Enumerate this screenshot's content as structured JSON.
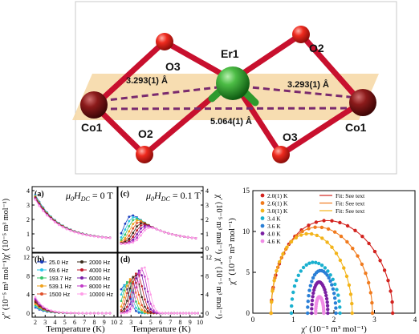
{
  "structure": {
    "atoms": {
      "er": "Er1",
      "o2_top": "O2",
      "o3_left": "O3",
      "o2_bottom": "O2",
      "o3_right": "O3",
      "co_left": "Co1",
      "co_right": "Co1"
    },
    "distances": {
      "left": "3.293(1) Å",
      "right": "3.293(1) Å",
      "bottom": "5.064(1) Å"
    },
    "colors": {
      "er": "#2e9a2e",
      "oxygen": "#e2231a",
      "cobalt": "#8b1a1a",
      "plane": "#f6d9a8",
      "dashed": "#7a2a6e"
    }
  },
  "left_panels": {
    "xlabel": "Temperature (K)",
    "ylabel_chi1": "χ′ (10⁻⁵ m³ mol⁻¹)",
    "ylabel_chi2": "χ″ (10⁻⁵ m³ mol⁻¹)",
    "field_label_a_prefix": "μ",
    "field_label_a_sub": "0",
    "field_label_a_h": "H",
    "field_label_a_hsub": "DC",
    "field_label_a_suffix": " = 0 T",
    "field_label_c_suffix": " = 0.1 T",
    "panel_labels": [
      "(a)",
      "(b)",
      "(c)",
      "(d)"
    ],
    "legend_left": [
      "25.0 Hz",
      "69.6 Hz",
      "193.7 Hz",
      "539.1 Hz",
      "1500 Hz"
    ],
    "legend_right": [
      "2000 Hz",
      "4000 Hz",
      "6000 Hz",
      "8000 Hz",
      "10000 Hz"
    ],
    "x_ticks": [
      "2",
      "3",
      "4",
      "5",
      "6",
      "7",
      "8",
      "9",
      "10"
    ],
    "y_ticks_top": [
      "4",
      "3",
      "2",
      "1",
      "0"
    ],
    "y_ticks_bottom": [
      "12",
      "8",
      "4",
      "0"
    ]
  },
  "cole_cole": {
    "xlabel": "χ′ (10⁻⁵ m³ mol⁻¹)",
    "ylabel": "χ″ (10⁻⁶ m³ mol⁻¹)",
    "legend_temps": [
      "2.0(1) K",
      "2.6(1) K",
      "3.0(1) K",
      "3.4 K",
      "3.6 K",
      "4.0 K",
      "4.6 K"
    ],
    "legend_fits": [
      "Fit: See text",
      "Fit: See text",
      "Fit: See text"
    ]
  },
  "chart_data": {
    "type": "scatter",
    "x_title": "χ′ (10⁻⁵ m³ mol⁻¹)",
    "y_title": "χ″ (10⁻⁶ m³ mol⁻¹)",
    "xlim": [
      0,
      4
    ],
    "ylim": [
      0,
      15
    ],
    "x_ticks": [
      0,
      1,
      2,
      3,
      4
    ],
    "y_ticks": [
      0,
      5,
      10,
      15
    ],
    "series": [
      {
        "name": "2.0(1) K",
        "color": "#d2231f",
        "x0": 0.45,
        "x1": 3.45,
        "peak": 11.3,
        "fit": true
      },
      {
        "name": "2.6(1) K",
        "color": "#f07a1d",
        "x0": 0.45,
        "x1": 2.95,
        "peak": 10.5,
        "fit": true
      },
      {
        "name": "3.0(1) K",
        "color": "#f3b41b",
        "x0": 0.45,
        "x1": 2.45,
        "peak": 9.7,
        "fit": true
      },
      {
        "name": "3.4 K",
        "color": "#1ab0cf",
        "x0": 0.95,
        "x1": 2.15,
        "peak": 6.2,
        "fit": false
      },
      {
        "name": "3.6 K",
        "color": "#2a7fd6",
        "x0": 1.35,
        "x1": 2.05,
        "peak": 5.2,
        "fit": false
      },
      {
        "name": "4.0 K",
        "color": "#7b1fa2",
        "x0": 1.45,
        "x1": 1.85,
        "peak": 3.8,
        "fit": false
      },
      {
        "name": "4.6 K",
        "color": "#f08ce6",
        "x0": 1.55,
        "x1": 1.75,
        "peak": 2.0,
        "fit": false
      }
    ]
  },
  "freq_colors": [
    "#1a3fbf",
    "#29c4e6",
    "#33c46a",
    "#f0a21b",
    "#e0502a",
    "#3a2a1a",
    "#c0182a",
    "#7a1fa8",
    "#c23ac8",
    "#ff9ee8"
  ]
}
